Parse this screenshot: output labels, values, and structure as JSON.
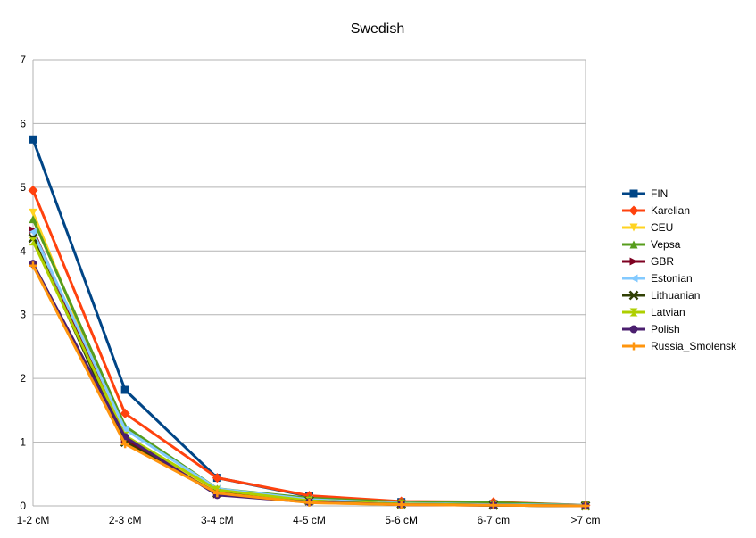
{
  "chart_data": {
    "type": "line",
    "title": "Swedish",
    "xlabel": "",
    "ylabel": "",
    "categories": [
      "1-2 cM",
      "2-3 cM",
      "3-4 cM",
      "4-5 cM",
      "5-6 cM",
      "6-7 cm",
      ">7 cm"
    ],
    "ylim": [
      0,
      7
    ],
    "yticks": [
      "0",
      "1",
      "2",
      "3",
      "4",
      "5",
      "6",
      "7"
    ],
    "grid": true,
    "legend_position": "right",
    "series": [
      {
        "name": "FIN",
        "color": "#004586",
        "marker": "square",
        "values": [
          5.75,
          1.82,
          0.44,
          0.15,
          0.06,
          0.03,
          0.01
        ]
      },
      {
        "name": "Karelian",
        "color": "#ff420e",
        "marker": "diamond",
        "values": [
          4.95,
          1.45,
          0.44,
          0.16,
          0.07,
          0.06,
          0.01
        ]
      },
      {
        "name": "CEU",
        "color": "#ffd320",
        "marker": "triangle-down",
        "values": [
          4.6,
          1.05,
          0.25,
          0.05,
          0.02,
          0.01,
          0.0
        ]
      },
      {
        "name": "Vepsa",
        "color": "#579d1c",
        "marker": "triangle-up",
        "values": [
          4.5,
          1.25,
          0.27,
          0.12,
          0.06,
          0.05,
          0.01
        ]
      },
      {
        "name": "GBR",
        "color": "#7e0021",
        "marker": "triangle-right",
        "values": [
          4.33,
          1.05,
          0.18,
          0.07,
          0.02,
          0.01,
          0.0
        ]
      },
      {
        "name": "Estonian",
        "color": "#83caff",
        "marker": "triangle-left",
        "values": [
          4.3,
          1.2,
          0.27,
          0.1,
          0.04,
          0.02,
          0.01
        ]
      },
      {
        "name": "Lithuanian",
        "color": "#314004",
        "marker": "x",
        "values": [
          4.2,
          1.0,
          0.2,
          0.08,
          0.03,
          0.01,
          0.0
        ]
      },
      {
        "name": "Latvian",
        "color": "#aecf00",
        "marker": "hourglass",
        "values": [
          4.15,
          1.1,
          0.25,
          0.08,
          0.03,
          0.01,
          0.0
        ]
      },
      {
        "name": "Polish",
        "color": "#4b1f6f",
        "marker": "circle",
        "values": [
          3.8,
          1.08,
          0.17,
          0.06,
          0.02,
          0.01,
          0.0
        ]
      },
      {
        "name": "Russia_Smolensk",
        "color": "#ff950e",
        "marker": "plus",
        "values": [
          3.77,
          0.97,
          0.2,
          0.05,
          0.02,
          0.01,
          0.0
        ]
      }
    ]
  }
}
